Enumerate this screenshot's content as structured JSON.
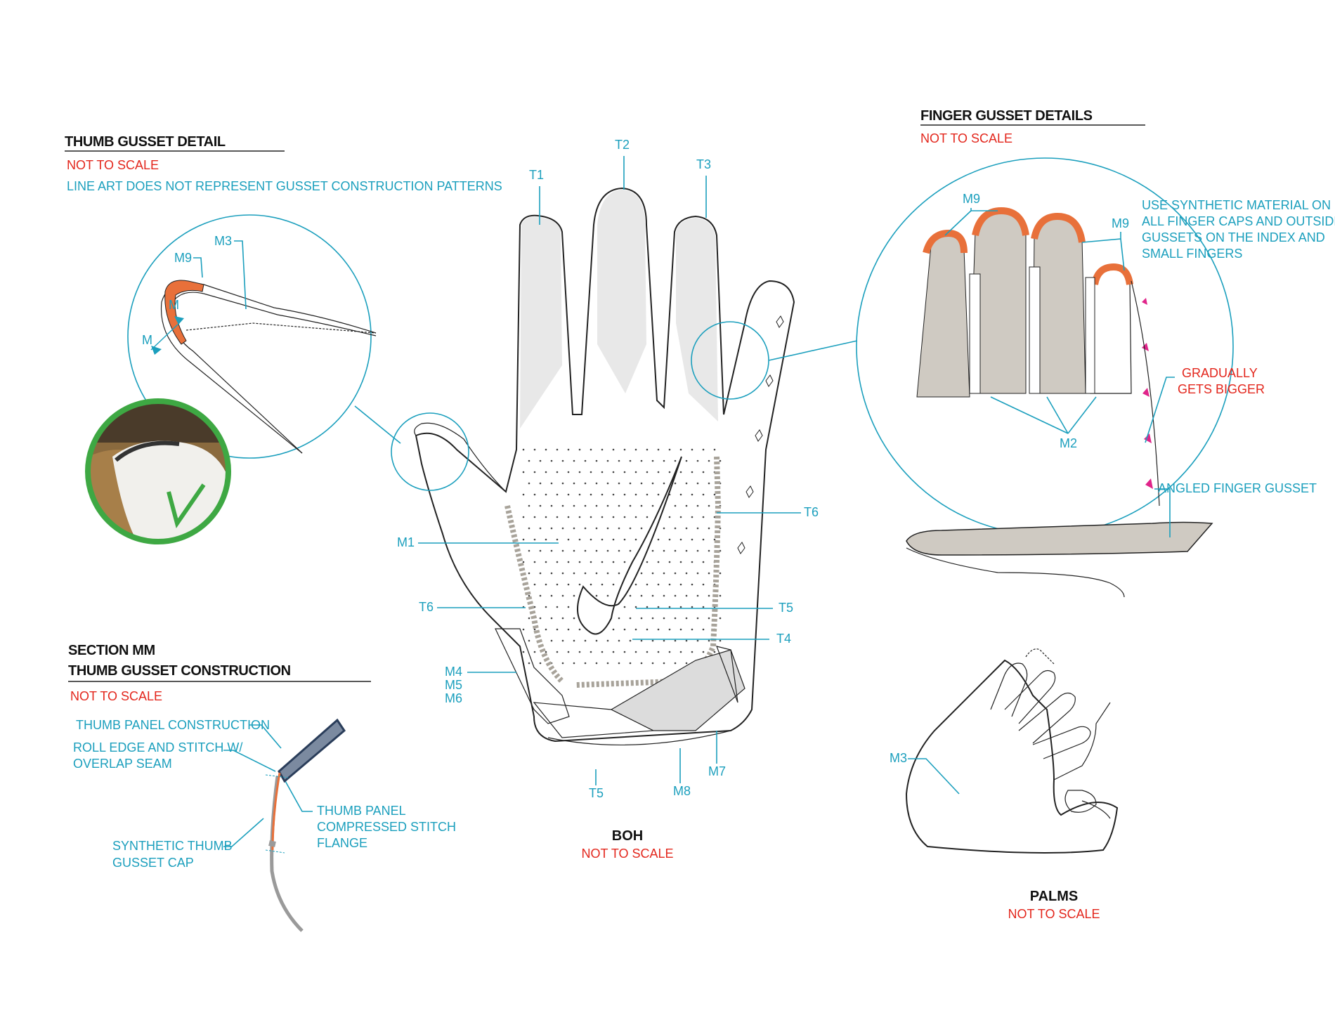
{
  "thumb_detail": {
    "title": "THUMB GUSSET DETAIL",
    "not_to_scale": "NOT TO SCALE",
    "note": "LINE ART DOES NOT REPRESENT GUSSET CONSTRUCTION PATTERNS",
    "labels": {
      "m9": "M9",
      "m3": "M3",
      "m_a": "M",
      "m_b": "M"
    }
  },
  "section_mm": {
    "title_1": "SECTION MM",
    "title_2": "THUMB GUSSET CONSTRUCTION",
    "not_to_scale": "NOT TO SCALE",
    "thumb_panel": "THUMB PANEL CONSTRUCTION",
    "roll_edge_1": "ROLL EDGE AND STITCH W/",
    "roll_edge_2": "OVERLAP SEAM",
    "compressed_1": "THUMB PANEL",
    "compressed_2": "COMPRESSED STITCH",
    "compressed_3": "FLANGE",
    "cap_1": "SYNTHETIC THUMB",
    "cap_2": "GUSSET CAP"
  },
  "boh": {
    "title": "BOH",
    "not_to_scale": "NOT TO SCALE",
    "labels": {
      "t1": "T1",
      "t2": "T2",
      "t3": "T3",
      "t6_right": "T6",
      "t6_left": "T6",
      "m1": "M1",
      "t5_right": "T5",
      "t4": "T4",
      "m4": "M4",
      "m5": "M5",
      "m6": "M6",
      "t5_bottom": "T5",
      "m8": "M8",
      "m7": "M7"
    }
  },
  "finger_detail": {
    "title": "FINGER GUSSET DETAILS",
    "not_to_scale": "NOT TO SCALE",
    "m9_left": "M9",
    "m9_right": "M9",
    "note_1": "USE SYNTHETIC MATERIAL ON",
    "note_2": "ALL FINGER CAPS AND OUTSIDE",
    "note_3": "GUSSETS ON THE INDEX AND",
    "note_4": "SMALL FINGERS",
    "gradual_1": "GRADUALLY",
    "gradual_2": "GETS BIGGER",
    "m2": "M2",
    "angled": "ANGLED FINGER GUSSET"
  },
  "palms": {
    "title": "PALMS",
    "not_to_scale": "NOT TO SCALE",
    "m3": "M3"
  },
  "colors": {
    "accent_blue": "#1b9fbd",
    "warning_red": "#e3261c",
    "gusset_orange": "#e8703a",
    "gusset_gray": "#cfcac2",
    "check_green": "#3ea843",
    "magenta_marker": "#e0248a"
  }
}
